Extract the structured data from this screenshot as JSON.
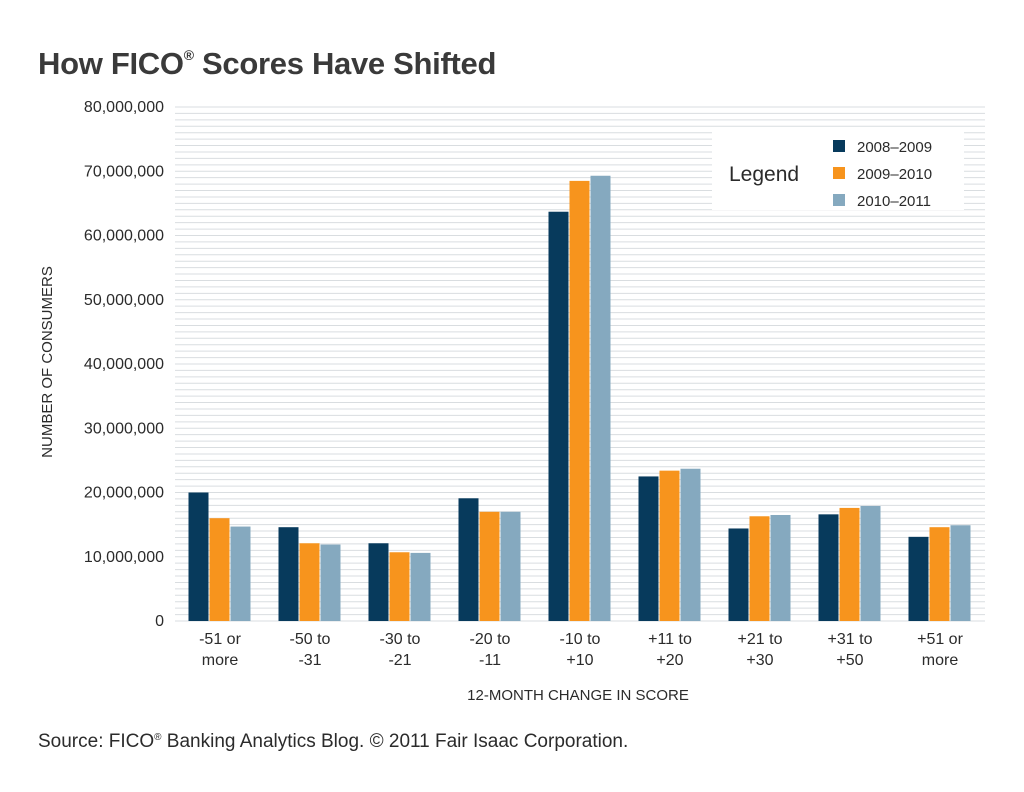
{
  "title": {
    "text": "How FICO",
    "mark": "®",
    "rest": " Scores Have Shifted"
  },
  "source": {
    "prefix": "Source: FICO",
    "mark": "®",
    "rest": " Banking Analytics Blog. © 2011 Fair Isaac Corporation."
  },
  "colors": {
    "series_2008_2009": "#073a5c",
    "series_2009_2010": "#f7941d",
    "series_2010_2011": "#85a9bf",
    "gridline": "#d9dde0",
    "background": "#ffffff"
  },
  "chart_data": {
    "type": "bar",
    "title": "How FICO® Scores Have Shifted",
    "xlabel": "12-MONTH CHANGE IN SCORE",
    "ylabel": "NUMBER OF CONSUMERS",
    "ylim": [
      0,
      80000000
    ],
    "yticks": [
      0,
      10000000,
      20000000,
      30000000,
      40000000,
      50000000,
      60000000,
      70000000,
      80000000
    ],
    "ytick_labels": [
      "0",
      "10,000,000",
      "20,000,000",
      "30,000,000",
      "40,000,000",
      "50,000,000",
      "60,000,000",
      "70,000,000",
      "80,000,000"
    ],
    "grid": true,
    "legend": {
      "title": "Legend",
      "position": "top-right"
    },
    "categories": [
      [
        "-51 or",
        "more"
      ],
      [
        "-50 to",
        "-31"
      ],
      [
        "-30 to",
        "-21"
      ],
      [
        "-20 to",
        "-11"
      ],
      [
        "-10 to",
        "+10"
      ],
      [
        "+11 to",
        "+20"
      ],
      [
        "+21 to",
        "+30"
      ],
      [
        "+31 to",
        "+50"
      ],
      [
        "+51 or",
        "more"
      ]
    ],
    "series": [
      {
        "name": "2008–2009",
        "values": [
          20000000,
          14600000,
          12100000,
          19100000,
          63700000,
          22500000,
          14400000,
          16600000,
          13100000
        ]
      },
      {
        "name": "2009–2010",
        "values": [
          16000000,
          12100000,
          10700000,
          17000000,
          68500000,
          23400000,
          16300000,
          17600000,
          14600000
        ]
      },
      {
        "name": "2010–2011",
        "values": [
          14700000,
          11900000,
          10600000,
          17000000,
          69300000,
          23700000,
          16500000,
          17900000,
          14900000
        ]
      }
    ]
  }
}
